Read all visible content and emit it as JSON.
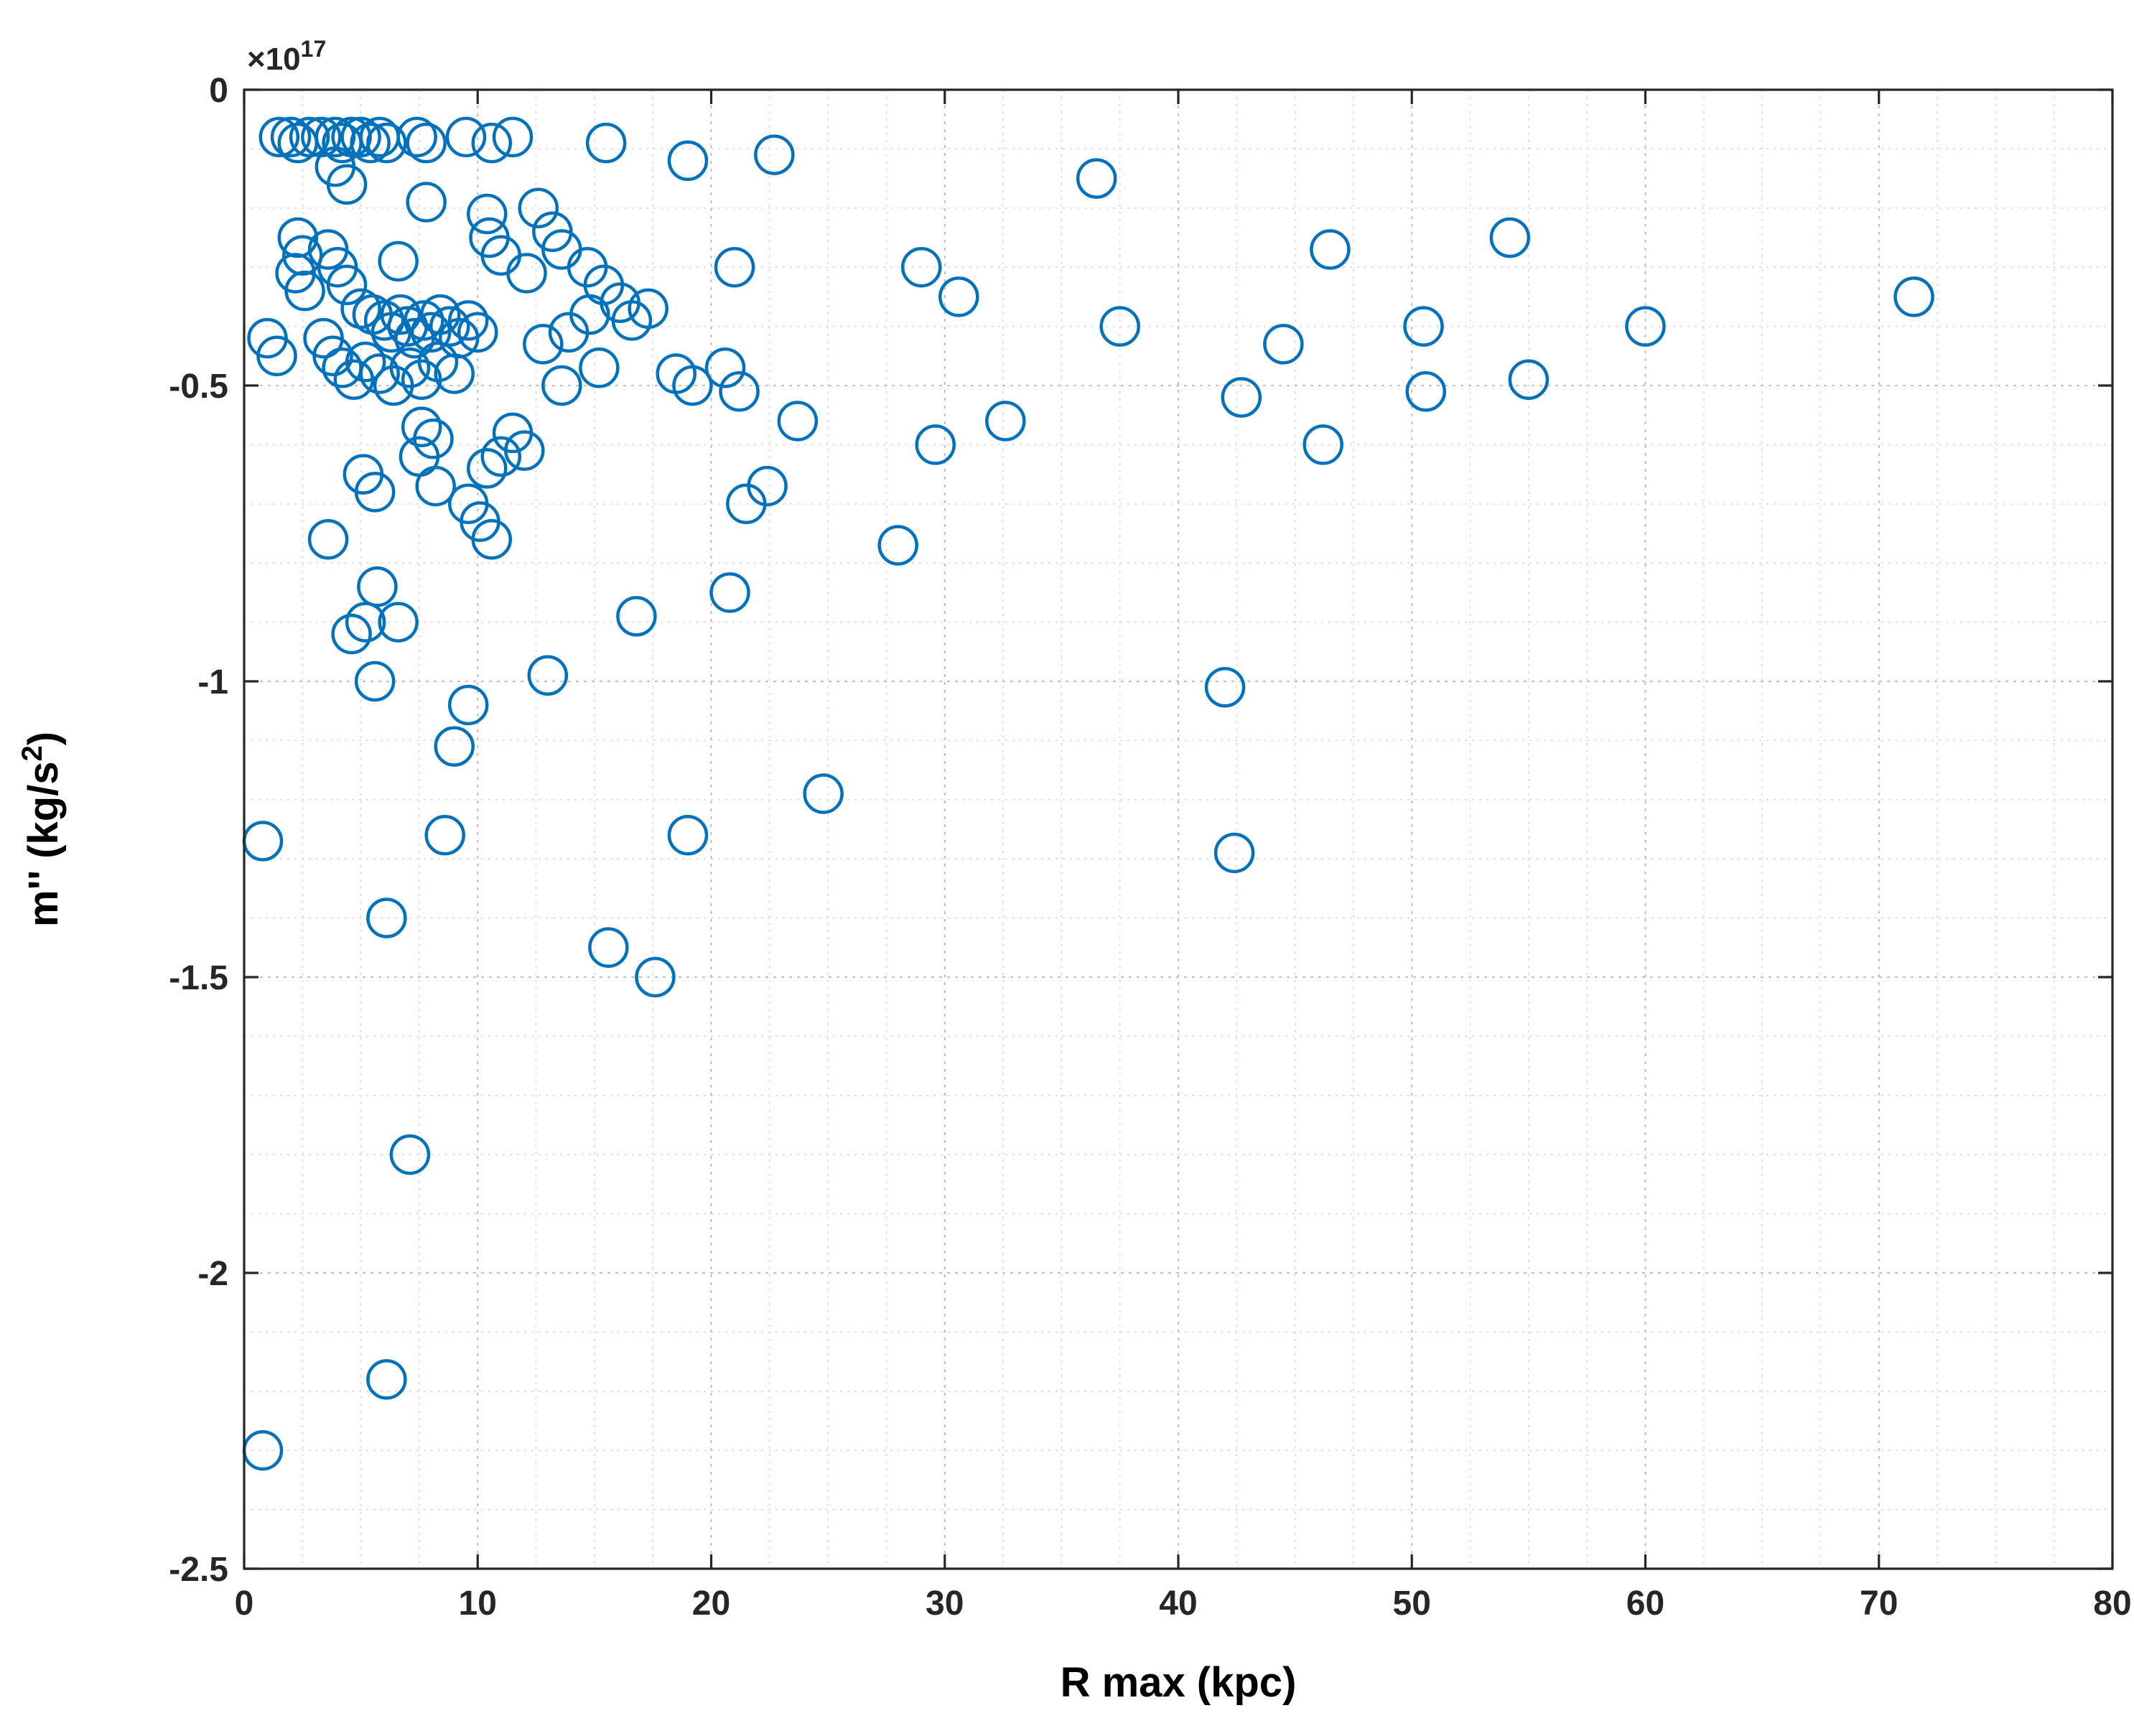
{
  "chart_data": {
    "type": "scatter",
    "title": "",
    "xlabel": "R max (kpc)",
    "ylabel_main": "m'' (kg/s",
    "ylabel_sup": "2",
    "ylabel_close": ")",
    "offset_main": "×10",
    "offset_exp": "17",
    "xlim": [
      0,
      80
    ],
    "ylim": [
      -2.5,
      0
    ],
    "x_ticks": [
      0,
      10,
      20,
      30,
      40,
      50,
      60,
      70,
      80
    ],
    "y_ticks": [
      0,
      -0.5,
      -1,
      -1.5,
      -2,
      -2.5
    ],
    "y_tick_labels": [
      "0",
      "-0.5",
      "-1",
      "-1.5",
      "-2",
      "-2.5"
    ],
    "x_minor_step": 2.5,
    "y_minor_step": 0.1,
    "grid": "on",
    "minor_grid": "on",
    "legend_position": "none",
    "marker": {
      "shape": "open-circle",
      "color": "#0072BD",
      "radius": 26,
      "stroke_width": 4.5
    },
    "axis_color": "#262626",
    "major_grid_color": "#b8b8b8",
    "minor_grid_color": "#d9d9d9",
    "points": [
      [
        1.5,
        -0.08
      ],
      [
        2.0,
        -0.08
      ],
      [
        2.3,
        -0.09
      ],
      [
        2.8,
        -0.08
      ],
      [
        3.3,
        -0.08
      ],
      [
        3.9,
        -0.08
      ],
      [
        4.2,
        -0.09
      ],
      [
        4.6,
        -0.08
      ],
      [
        5.0,
        -0.08
      ],
      [
        5.4,
        -0.09
      ],
      [
        5.8,
        -0.08
      ],
      [
        6.1,
        -0.09
      ],
      [
        7.4,
        -0.08
      ],
      [
        7.8,
        -0.09
      ],
      [
        9.5,
        -0.08
      ],
      [
        10.6,
        -0.09
      ],
      [
        11.5,
        -0.08
      ],
      [
        15.5,
        -0.09
      ],
      [
        19.0,
        -0.12
      ],
      [
        22.7,
        -0.11
      ],
      [
        3.9,
        -0.13
      ],
      [
        4.4,
        -0.16
      ],
      [
        36.5,
        -0.15
      ],
      [
        7.8,
        -0.19
      ],
      [
        10.4,
        -0.21
      ],
      [
        12.6,
        -0.2
      ],
      [
        2.3,
        -0.25
      ],
      [
        2.5,
        -0.28
      ],
      [
        10.5,
        -0.25
      ],
      [
        11.0,
        -0.28
      ],
      [
        13.2,
        -0.24
      ],
      [
        13.6,
        -0.27
      ],
      [
        3.6,
        -0.27
      ],
      [
        2.2,
        -0.31
      ],
      [
        2.6,
        -0.34
      ],
      [
        6.6,
        -0.29
      ],
      [
        12.1,
        -0.31
      ],
      [
        14.7,
        -0.3
      ],
      [
        15.4,
        -0.33
      ],
      [
        16.1,
        -0.36
      ],
      [
        21.0,
        -0.3
      ],
      [
        29.0,
        -0.3
      ],
      [
        30.6,
        -0.35
      ],
      [
        46.5,
        -0.27
      ],
      [
        54.2,
        -0.25
      ],
      [
        71.5,
        -0.35
      ],
      [
        4.0,
        -0.3
      ],
      [
        4.4,
        -0.33
      ],
      [
        5.0,
        -0.37
      ],
      [
        5.5,
        -0.38
      ],
      [
        6.0,
        -0.39
      ],
      [
        6.3,
        -0.41
      ],
      [
        6.7,
        -0.38
      ],
      [
        7.0,
        -0.4
      ],
      [
        7.3,
        -0.42
      ],
      [
        7.7,
        -0.39
      ],
      [
        8.0,
        -0.41
      ],
      [
        8.4,
        -0.38
      ],
      [
        8.8,
        -0.4
      ],
      [
        9.2,
        -0.42
      ],
      [
        9.6,
        -0.39
      ],
      [
        10.0,
        -0.41
      ],
      [
        3.4,
        -0.42
      ],
      [
        3.8,
        -0.45
      ],
      [
        1.0,
        -0.42
      ],
      [
        1.4,
        -0.45
      ],
      [
        4.2,
        -0.47
      ],
      [
        4.7,
        -0.49
      ],
      [
        5.2,
        -0.46
      ],
      [
        5.8,
        -0.48
      ],
      [
        6.4,
        -0.5
      ],
      [
        7.1,
        -0.47
      ],
      [
        7.6,
        -0.49
      ],
      [
        8.3,
        -0.46
      ],
      [
        9.0,
        -0.48
      ],
      [
        12.8,
        -0.43
      ],
      [
        13.9,
        -0.41
      ],
      [
        14.8,
        -0.38
      ],
      [
        16.6,
        -0.39
      ],
      [
        17.3,
        -0.37
      ],
      [
        15.2,
        -0.47
      ],
      [
        13.6,
        -0.5
      ],
      [
        18.5,
        -0.48
      ],
      [
        19.2,
        -0.5
      ],
      [
        20.6,
        -0.47
      ],
      [
        21.2,
        -0.51
      ],
      [
        37.5,
        -0.4
      ],
      [
        42.7,
        -0.52
      ],
      [
        44.5,
        -0.43
      ],
      [
        50.5,
        -0.4
      ],
      [
        50.6,
        -0.51
      ],
      [
        55.0,
        -0.49
      ],
      [
        60.0,
        -0.4
      ],
      [
        23.7,
        -0.56
      ],
      [
        32.6,
        -0.56
      ],
      [
        7.6,
        -0.57
      ],
      [
        8.1,
        -0.59
      ],
      [
        11.5,
        -0.58
      ],
      [
        12.0,
        -0.61
      ],
      [
        29.6,
        -0.6
      ],
      [
        46.2,
        -0.6
      ],
      [
        7.5,
        -0.62
      ],
      [
        5.1,
        -0.65
      ],
      [
        5.6,
        -0.68
      ],
      [
        8.2,
        -0.67
      ],
      [
        10.4,
        -0.64
      ],
      [
        11.0,
        -0.62
      ],
      [
        9.6,
        -0.7
      ],
      [
        10.1,
        -0.73
      ],
      [
        10.6,
        -0.76
      ],
      [
        21.5,
        -0.7
      ],
      [
        22.4,
        -0.67
      ],
      [
        28.0,
        -0.77
      ],
      [
        3.6,
        -0.76
      ],
      [
        5.7,
        -0.84
      ],
      [
        4.6,
        -0.92
      ],
      [
        5.2,
        -0.9
      ],
      [
        6.6,
        -0.9
      ],
      [
        16.8,
        -0.89
      ],
      [
        20.8,
        -0.85
      ],
      [
        5.6,
        -1.0
      ],
      [
        9.6,
        -1.04
      ],
      [
        13.0,
        -0.99
      ],
      [
        9.0,
        -1.11
      ],
      [
        8.6,
        -1.26
      ],
      [
        0.8,
        -1.27
      ],
      [
        19.0,
        -1.26
      ],
      [
        24.8,
        -1.19
      ],
      [
        42.0,
        -1.01
      ],
      [
        42.4,
        -1.29
      ],
      [
        6.1,
        -1.4
      ],
      [
        15.6,
        -1.45
      ],
      [
        17.6,
        -1.5
      ],
      [
        7.1,
        -1.8
      ],
      [
        6.1,
        -2.18
      ],
      [
        0.8,
        -2.3
      ]
    ]
  }
}
